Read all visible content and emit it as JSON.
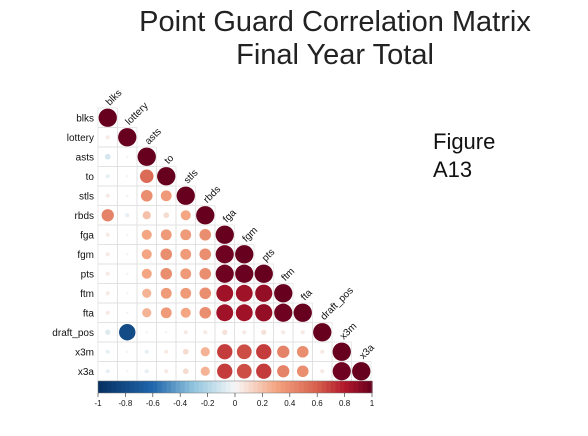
{
  "title": {
    "line1": "Point Guard Correlation Matrix",
    "line2": "Final Year Total"
  },
  "side_label": {
    "line1": "Figure",
    "line2": "A13"
  },
  "chart_data": {
    "type": "heatmap",
    "variables": [
      "blks",
      "lottery",
      "asts",
      "to",
      "stls",
      "rbds",
      "fga",
      "fgm",
      "pts",
      "ftm",
      "fta",
      "draft_pos",
      "x3m",
      "x3a"
    ],
    "matrix": [
      [
        1.0
      ],
      [
        0.05,
        1.0
      ],
      [
        -0.1,
        0.02,
        1.0
      ],
      [
        -0.05,
        0.02,
        0.55,
        1.0
      ],
      [
        0.05,
        0.02,
        0.4,
        0.35,
        1.0
      ],
      [
        0.45,
        -0.05,
        0.2,
        0.1,
        0.3,
        1.0
      ],
      [
        0.05,
        0.02,
        0.3,
        0.35,
        0.35,
        0.4,
        1.0
      ],
      [
        0.05,
        0.02,
        0.3,
        0.4,
        0.35,
        0.4,
        0.98,
        1.0
      ],
      [
        0.05,
        0.02,
        0.3,
        0.4,
        0.35,
        0.4,
        0.98,
        0.99,
        1.0
      ],
      [
        0.05,
        0.02,
        0.25,
        0.35,
        0.35,
        0.4,
        0.85,
        0.85,
        0.88,
        1.0
      ],
      [
        0.05,
        0.02,
        0.25,
        0.35,
        0.3,
        0.4,
        0.85,
        0.85,
        0.88,
        0.98,
        1.0
      ],
      [
        -0.08,
        -0.8,
        0.02,
        0.02,
        0.05,
        0.05,
        0.08,
        0.05,
        0.08,
        0.05,
        0.05,
        1.0
      ],
      [
        -0.05,
        0.02,
        -0.05,
        0.05,
        0.1,
        0.25,
        0.7,
        0.65,
        0.7,
        0.45,
        0.4,
        0.05,
        1.0
      ],
      [
        -0.05,
        0.02,
        -0.05,
        0.05,
        0.1,
        0.25,
        0.7,
        0.65,
        0.7,
        0.45,
        0.4,
        0.05,
        0.98,
        1.0
      ]
    ],
    "colorbar_ticks": [
      "-1",
      "-0.8",
      "-0.6",
      "-0.4",
      "-0.2",
      "0",
      "0.2",
      "0.4",
      "0.6",
      "0.8",
      "1"
    ],
    "colorbar_range": [
      -1,
      1
    ],
    "color_low": "#053061",
    "color_mid": "#f7f7f7",
    "color_high": "#67001f",
    "layout": "lower triangle, circle size and color by correlation"
  }
}
